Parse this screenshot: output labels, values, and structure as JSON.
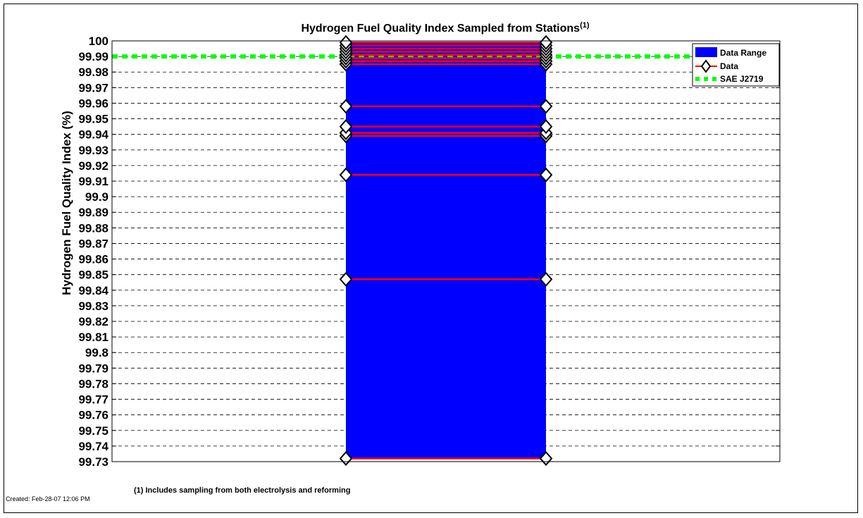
{
  "chart_data": {
    "type": "bar",
    "title": "Hydrogen Fuel Quality Index Sampled from Stations",
    "title_superscript": "(1)",
    "ylabel": "Hydrogen Fuel Quality Index (%)",
    "xlabel": "",
    "ylim": [
      99.73,
      100
    ],
    "y_ticks": [
      "99.73",
      "99.74",
      "99.75",
      "99.76",
      "99.77",
      "99.78",
      "99.79",
      "99.8",
      "99.81",
      "99.82",
      "99.83",
      "99.84",
      "99.85",
      "99.86",
      "99.87",
      "99.88",
      "99.89",
      "99.9",
      "99.91",
      "99.92",
      "99.93",
      "99.94",
      "99.95",
      "99.96",
      "99.97",
      "99.98",
      "99.99",
      "100"
    ],
    "grid": "horizontal-dashed",
    "legend_position": "top-right",
    "data_range": {
      "name": "Data Range",
      "min": 99.732,
      "max": 99.9995,
      "color": "#0000ff"
    },
    "data": {
      "name": "Data",
      "color": "#ff0000",
      "values": [
        99.732,
        99.847,
        99.914,
        99.939,
        99.941,
        99.945,
        99.958,
        99.985,
        99.987,
        99.989,
        99.991,
        99.993,
        99.995,
        99.997,
        99.999
      ]
    },
    "reference": {
      "name": "SAE J2719",
      "value": 99.99,
      "color": "#00ff00"
    }
  },
  "footnote": "(1) Includes sampling from both electrolysis and reforming",
  "created": "Created: Feb-28-07 12:06 PM"
}
